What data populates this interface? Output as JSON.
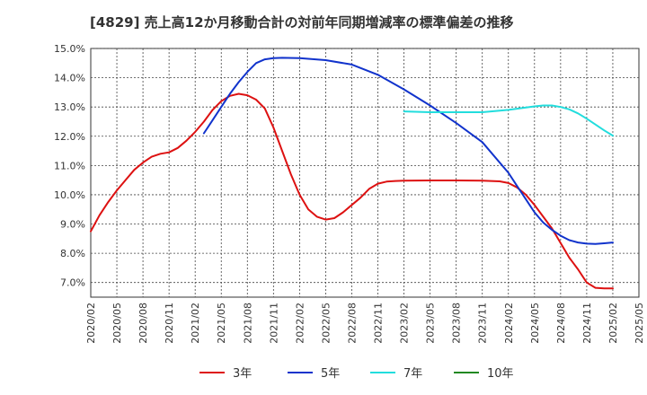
{
  "title": "[4829]  売上高12か月移動合計の対前年同期増減率の標準偏差の推移",
  "chart_data": {
    "type": "line",
    "title": "[4829]  売上高12か月移動合計の対前年同期増減率の標準偏差の推移",
    "xlabel": "",
    "ylabel": "",
    "ylim": [
      6.5,
      15.0
    ],
    "y_ticks": [
      7.0,
      8.0,
      9.0,
      10.0,
      11.0,
      12.0,
      13.0,
      14.0,
      15.0
    ],
    "y_tick_labels": [
      "7.0%",
      "8.0%",
      "9.0%",
      "10.0%",
      "11.0%",
      "12.0%",
      "13.0%",
      "14.0%",
      "15.0%"
    ],
    "x_ticks": [
      "2020/02",
      "2020/05",
      "2020/08",
      "2020/11",
      "2021/02",
      "2021/05",
      "2021/08",
      "2021/11",
      "2022/02",
      "2022/05",
      "2022/08",
      "2022/11",
      "2023/02",
      "2023/05",
      "2023/08",
      "2023/11",
      "2024/02",
      "2024/05",
      "2024/08",
      "2024/11",
      "2025/02",
      "2025/05"
    ],
    "grid": true,
    "legend_position": "bottom",
    "series": [
      {
        "name": "3年",
        "color": "#dd1111",
        "points": [
          [
            "2020/02",
            8.75
          ],
          [
            "2020/03",
            9.3
          ],
          [
            "2020/04",
            9.75
          ],
          [
            "2020/05",
            10.15
          ],
          [
            "2020/06",
            10.5
          ],
          [
            "2020/07",
            10.85
          ],
          [
            "2020/08",
            11.1
          ],
          [
            "2020/09",
            11.3
          ],
          [
            "2020/10",
            11.4
          ],
          [
            "2020/11",
            11.45
          ],
          [
            "2020/12",
            11.6
          ],
          [
            "2021/01",
            11.85
          ],
          [
            "2021/02",
            12.15
          ],
          [
            "2021/03",
            12.5
          ],
          [
            "2021/04",
            12.9
          ],
          [
            "2021/05",
            13.2
          ],
          [
            "2021/06",
            13.38
          ],
          [
            "2021/07",
            13.45
          ],
          [
            "2021/08",
            13.4
          ],
          [
            "2021/09",
            13.25
          ],
          [
            "2021/10",
            12.95
          ],
          [
            "2021/11",
            12.3
          ],
          [
            "2021/12",
            11.5
          ],
          [
            "2022/01",
            10.7
          ],
          [
            "2022/02",
            10.0
          ],
          [
            "2022/03",
            9.5
          ],
          [
            "2022/04",
            9.25
          ],
          [
            "2022/05",
            9.15
          ],
          [
            "2022/06",
            9.2
          ],
          [
            "2022/07",
            9.4
          ],
          [
            "2022/08",
            9.65
          ],
          [
            "2022/09",
            9.9
          ],
          [
            "2022/10",
            10.2
          ],
          [
            "2022/11",
            10.38
          ],
          [
            "2022/12",
            10.45
          ],
          [
            "2023/01",
            10.47
          ],
          [
            "2023/02",
            10.48
          ],
          [
            "2023/05",
            10.49
          ],
          [
            "2023/08",
            10.49
          ],
          [
            "2023/11",
            10.48
          ],
          [
            "2024/01",
            10.46
          ],
          [
            "2024/02",
            10.4
          ],
          [
            "2024/03",
            10.25
          ],
          [
            "2024/04",
            10.0
          ],
          [
            "2024/05",
            9.65
          ],
          [
            "2024/06",
            9.25
          ],
          [
            "2024/07",
            8.85
          ],
          [
            "2024/08",
            8.35
          ],
          [
            "2024/09",
            7.85
          ],
          [
            "2024/10",
            7.45
          ],
          [
            "2024/11",
            7.0
          ],
          [
            "2024/12",
            6.82
          ],
          [
            "2025/01",
            6.8
          ],
          [
            "2025/02",
            6.8
          ]
        ]
      },
      {
        "name": "5年",
        "color": "#1133cc",
        "points": [
          [
            "2021/03",
            12.1
          ],
          [
            "2021/04",
            12.55
          ],
          [
            "2021/05",
            13.0
          ],
          [
            "2021/06",
            13.45
          ],
          [
            "2021/07",
            13.85
          ],
          [
            "2021/08",
            14.2
          ],
          [
            "2021/09",
            14.5
          ],
          [
            "2021/10",
            14.63
          ],
          [
            "2021/11",
            14.67
          ],
          [
            "2021/12",
            14.68
          ],
          [
            "2022/02",
            14.67
          ],
          [
            "2022/05",
            14.6
          ],
          [
            "2022/08",
            14.45
          ],
          [
            "2022/11",
            14.1
          ],
          [
            "2023/02",
            13.6
          ],
          [
            "2023/05",
            13.05
          ],
          [
            "2023/08",
            12.45
          ],
          [
            "2023/11",
            11.8
          ],
          [
            "2024/02",
            10.75
          ],
          [
            "2024/03",
            10.3
          ],
          [
            "2024/04",
            9.85
          ],
          [
            "2024/05",
            9.4
          ],
          [
            "2024/06",
            9.05
          ],
          [
            "2024/07",
            8.8
          ],
          [
            "2024/08",
            8.6
          ],
          [
            "2024/09",
            8.45
          ],
          [
            "2024/10",
            8.37
          ],
          [
            "2024/11",
            8.33
          ],
          [
            "2024/12",
            8.32
          ],
          [
            "2025/01",
            8.34
          ],
          [
            "2025/02",
            8.37
          ]
        ]
      },
      {
        "name": "7年",
        "color": "#22dddd",
        "points": [
          [
            "2023/02",
            12.85
          ],
          [
            "2023/05",
            12.82
          ],
          [
            "2023/08",
            12.82
          ],
          [
            "2023/11",
            12.82
          ],
          [
            "2024/02",
            12.9
          ],
          [
            "2024/05",
            13.02
          ],
          [
            "2024/06",
            13.05
          ],
          [
            "2024/07",
            13.05
          ],
          [
            "2024/08",
            13.0
          ],
          [
            "2024/09",
            12.92
          ],
          [
            "2024/10",
            12.78
          ],
          [
            "2024/11",
            12.6
          ],
          [
            "2024/12",
            12.4
          ],
          [
            "2025/01",
            12.2
          ],
          [
            "2025/02",
            12.02
          ]
        ]
      },
      {
        "name": "10年",
        "color": "#228822",
        "points": []
      }
    ]
  }
}
